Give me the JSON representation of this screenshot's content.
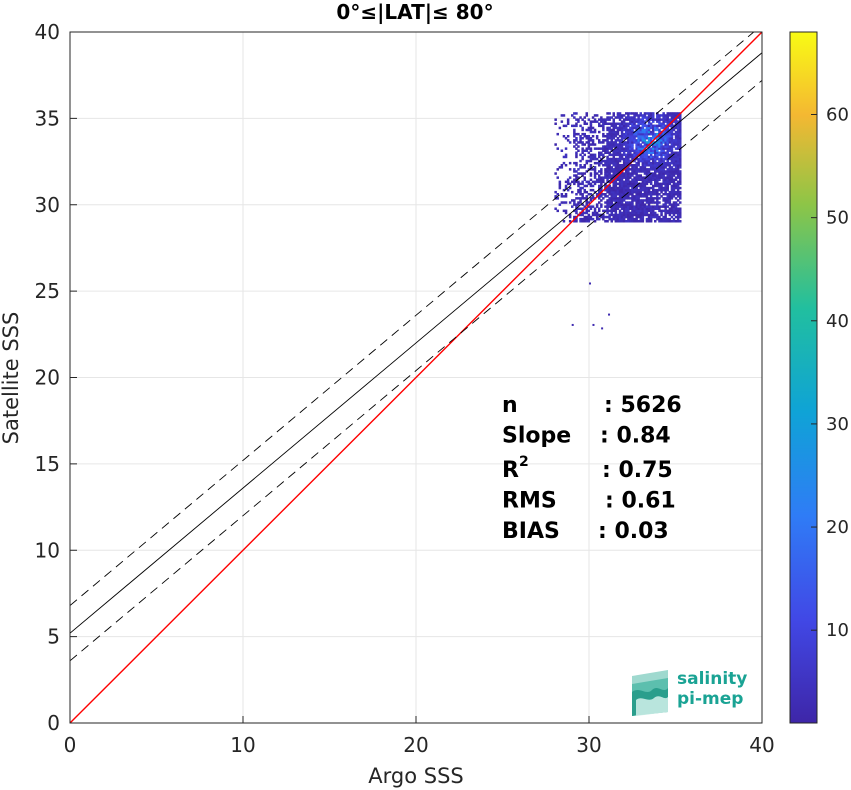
{
  "chart_data": {
    "type": "scatter",
    "subtype": "2d-histogram",
    "title": "0°≤|LAT|≤ 80°",
    "xlabel": "Argo SSS",
    "ylabel": "Satellite SSS",
    "xlim": [
      0,
      40
    ],
    "ylim": [
      0,
      40
    ],
    "xticks": [
      0,
      10,
      20,
      30,
      40
    ],
    "yticks": [
      0,
      5,
      10,
      15,
      20,
      25,
      30,
      35,
      40
    ],
    "grid": true,
    "colorbar": {
      "range": [
        1,
        68
      ],
      "ticks": [
        10,
        20,
        30,
        40,
        50,
        60
      ],
      "colormap": "parula"
    },
    "lines": [
      {
        "role": "one-to-one",
        "color": "#ff0000",
        "style": "solid",
        "slope": 1.0,
        "intercept": 0.0
      },
      {
        "role": "regression",
        "color": "#000000",
        "style": "solid",
        "slope": 0.84,
        "intercept": 5.2
      },
      {
        "role": "regression-upper",
        "color": "#000000",
        "style": "dashed",
        "slope": 0.84,
        "intercept": 6.8
      },
      {
        "role": "regression-lower",
        "color": "#000000",
        "style": "dashed",
        "slope": 0.84,
        "intercept": 3.6
      }
    ],
    "density_cluster": {
      "x_range": [
        28,
        35.2
      ],
      "y_range": [
        29,
        35.3
      ],
      "peak": [
        33.5,
        33.7
      ]
    },
    "outliers": [
      {
        "x": 29.0,
        "y": 23.0
      },
      {
        "x": 30.2,
        "y": 23.0
      },
      {
        "x": 30.7,
        "y": 22.8
      },
      {
        "x": 31.1,
        "y": 23.6
      },
      {
        "x": 30.0,
        "y": 25.4
      }
    ],
    "stats": [
      {
        "label": "n",
        "value": ": 5626"
      },
      {
        "label": "Slope",
        "value": ": 0.84"
      },
      {
        "label": "R",
        "sup": "2",
        "value": ": 0.75"
      },
      {
        "label": "RMS",
        "value": ": 0.61"
      },
      {
        "label": "BIAS",
        "value": ": 0.03"
      }
    ]
  },
  "logo": {
    "line1": "salinity",
    "line2": "pi-mep"
  }
}
